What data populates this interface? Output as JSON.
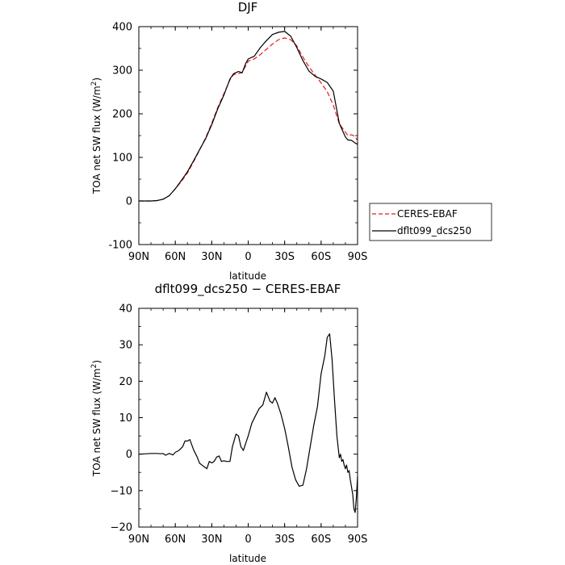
{
  "chart_data": [
    {
      "type": "line",
      "title": "DJF",
      "xlabel": "latitude",
      "ylabel": "TOA net SW flux (W/m",
      "ylabel_sup": "2",
      "ylabel_end": ")",
      "xlim": [
        90,
        -90
      ],
      "ylim": [
        -100,
        400
      ],
      "x_ticks": [
        90,
        60,
        30,
        0,
        -30,
        -60,
        -90
      ],
      "x_tick_labels": [
        "90N",
        "60N",
        "30N",
        "0",
        "30S",
        "60S",
        "90S"
      ],
      "y_ticks": [
        -100,
        0,
        100,
        200,
        300,
        400
      ],
      "y_tick_labels": [
        "-100",
        "0",
        "100",
        "200",
        "300",
        "400"
      ],
      "legend_position": "right",
      "series": [
        {
          "name": "CERES-EBAF",
          "color": "#e8191e",
          "dash": "dashed",
          "x": [
            90,
            80,
            75,
            70,
            65,
            60,
            55,
            50,
            45,
            40,
            35,
            30,
            25,
            20,
            15,
            12,
            8,
            5,
            2,
            0,
            -5,
            -10,
            -15,
            -20,
            -25,
            -30,
            -35,
            -40,
            -45,
            -50,
            -55,
            -60,
            -65,
            -70,
            -75,
            -80,
            -82,
            -85,
            -88,
            -90
          ],
          "y": [
            0,
            0,
            1,
            4,
            12,
            28,
            45,
            64,
            90,
            117,
            145,
            178,
            215,
            246,
            278,
            290,
            292,
            295,
            310,
            321,
            326,
            336,
            348,
            360,
            370,
            374,
            370,
            356,
            330,
            308,
            289,
            271,
            251,
            220,
            177,
            158,
            150,
            152,
            148,
            138
          ]
        },
        {
          "name": "dflt099_dcs250",
          "color": "#000000",
          "dash": "solid",
          "x": [
            90,
            80,
            75,
            70,
            65,
            60,
            55,
            50,
            45,
            40,
            35,
            30,
            25,
            20,
            15,
            12,
            8,
            5,
            2,
            0,
            -5,
            -10,
            -15,
            -20,
            -25,
            -30,
            -35,
            -40,
            -45,
            -50,
            -55,
            -60,
            -65,
            -70,
            -75,
            -80,
            -82,
            -85,
            -88,
            -90
          ],
          "y": [
            0,
            0,
            1,
            4,
            12,
            28,
            47,
            67,
            92,
            118,
            143,
            175,
            212,
            243,
            280,
            292,
            297,
            294,
            316,
            326,
            332,
            352,
            368,
            382,
            387,
            389,
            378,
            352,
            322,
            298,
            286,
            280,
            272,
            252,
            178,
            147,
            140,
            139,
            133,
            130
          ]
        }
      ]
    },
    {
      "type": "line",
      "title": "dflt099_dcs250 − CERES-EBAF",
      "xlabel": "latitude",
      "ylabel": "TOA net SW flux (W/m",
      "ylabel_sup": "2",
      "ylabel_end": ")",
      "xlim": [
        90,
        -90
      ],
      "ylim": [
        -20,
        40
      ],
      "x_ticks": [
        90,
        60,
        30,
        0,
        -30,
        -60,
        -90
      ],
      "x_tick_labels": [
        "90N",
        "60N",
        "30N",
        "0",
        "30S",
        "60S",
        "90S"
      ],
      "y_ticks": [
        -20,
        -10,
        0,
        10,
        20,
        30,
        40
      ],
      "y_tick_labels": [
        "−20",
        "−10",
        "0",
        "10",
        "20",
        "30",
        "40"
      ],
      "series": [
        {
          "color": "#000000",
          "dash": "solid",
          "x": [
            90,
            80,
            75,
            72,
            70,
            68,
            65,
            62,
            60,
            57,
            54,
            52,
            50,
            48,
            45,
            42,
            40,
            38,
            36,
            34,
            32,
            30,
            28,
            26,
            24,
            22,
            20,
            18,
            15,
            13,
            10,
            8,
            6,
            4,
            2,
            0,
            -3,
            -6,
            -9,
            -12,
            -15,
            -18,
            -20,
            -22,
            -24,
            -27,
            -30,
            -33,
            -36,
            -39,
            -42,
            -45,
            -48,
            -51,
            -54,
            -57,
            -60,
            -63,
            -65,
            -67,
            -69,
            -71,
            -73,
            -75,
            -76,
            -77,
            -78,
            -79,
            -80,
            -81,
            -82,
            -83,
            -84,
            -85,
            -86,
            -87,
            -88,
            -89,
            -90
          ],
          "y": [
            0,
            0.2,
            0.2,
            0.1,
            0.2,
            -0.3,
            0.2,
            -0.2,
            0.5,
            1,
            2,
            3.6,
            3.6,
            4,
            1.2,
            -0.8,
            -2.5,
            -3,
            -3.5,
            -4,
            -2,
            -2.4,
            -2,
            -0.8,
            -0.5,
            -2,
            -1.8,
            -2,
            -2,
            2,
            5.5,
            5,
            2,
            1,
            3,
            5,
            8.5,
            10.5,
            12.5,
            13.5,
            17,
            14.5,
            14,
            15.5,
            14,
            11,
            7,
            2,
            -3.5,
            -7,
            -8.8,
            -8.5,
            -4,
            2,
            8,
            13,
            22,
            27,
            32,
            33,
            26,
            15,
            5,
            -1,
            0,
            -2,
            -1.5,
            -3,
            -4,
            -3,
            -5,
            -4.5,
            -7,
            -9,
            -11,
            -15,
            -16,
            -12,
            -6
          ]
        }
      ]
    }
  ]
}
